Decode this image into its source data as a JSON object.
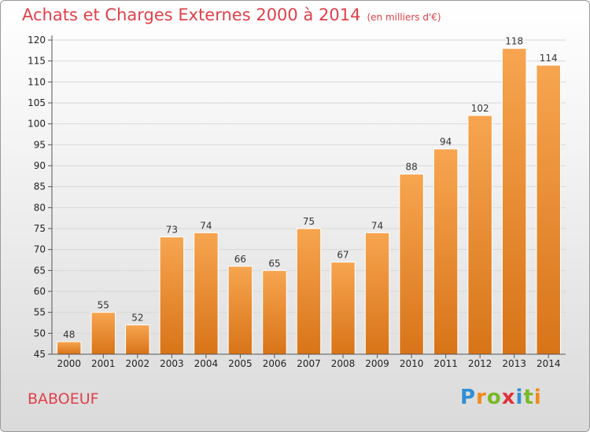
{
  "header": {
    "title": "Achats et Charges Externes 2000 à 2014",
    "subtitle": "(en milliers d'€)"
  },
  "footer": {
    "place": "BABOEUF",
    "brand": "Proxiti"
  },
  "colors": {
    "title": "#e0404a",
    "bar_light": "#f7a550",
    "bar_dark": "#d87418",
    "grid": "#d8d8d8"
  },
  "chart_data": {
    "type": "bar",
    "categories": [
      "2000",
      "2001",
      "2002",
      "2003",
      "2004",
      "2005",
      "2006",
      "2007",
      "2008",
      "2009",
      "2010",
      "2011",
      "2012",
      "2013",
      "2014"
    ],
    "values": [
      48,
      55,
      52,
      73,
      74,
      66,
      65,
      75,
      67,
      74,
      88,
      94,
      102,
      118,
      114
    ],
    "ylim": [
      45,
      120
    ],
    "yticks": [
      45,
      50,
      55,
      60,
      65,
      70,
      75,
      80,
      85,
      90,
      95,
      100,
      105,
      110,
      115,
      120
    ],
    "grid": true,
    "data_labels": true,
    "xlabel": "",
    "ylabel": ""
  }
}
